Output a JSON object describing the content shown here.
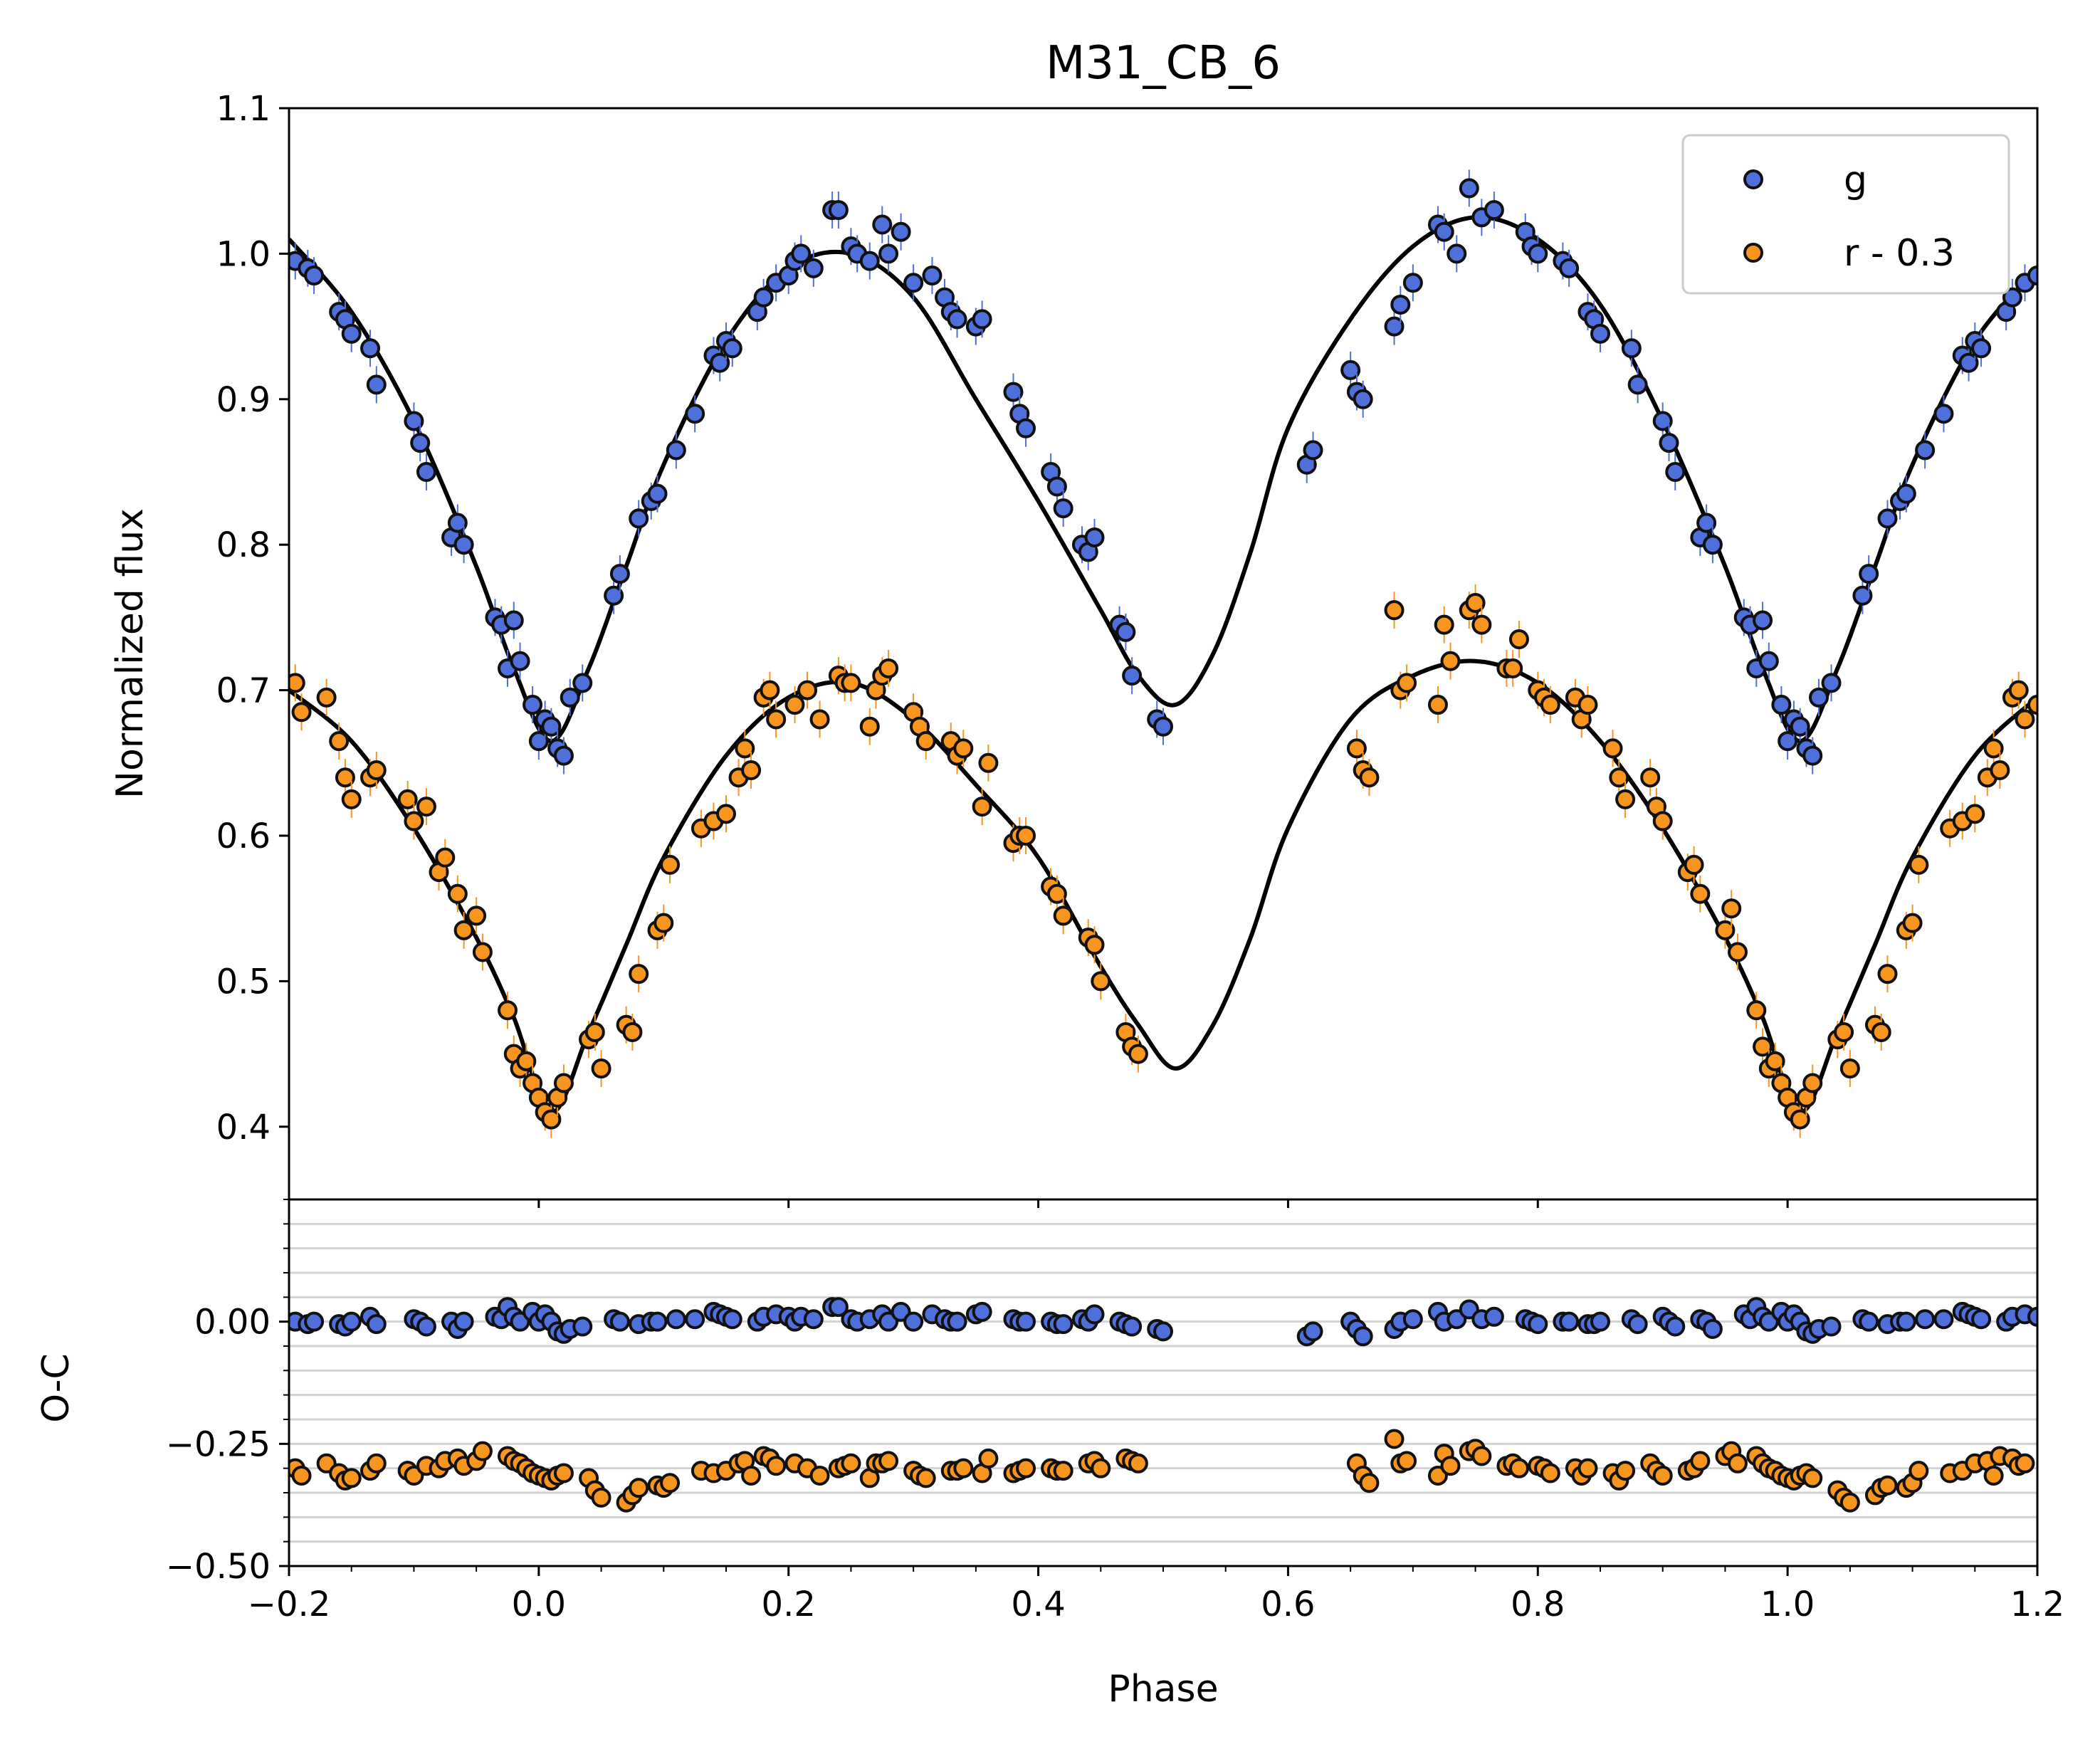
{
  "chart_data": [
    {
      "type": "scatter",
      "panel": "light-curve",
      "title": "M31_CB_6",
      "xlabel": "",
      "ylabel": "Normalized flux",
      "xlim": [
        -0.2,
        1.2
      ],
      "ylim": [
        0.35,
        1.1
      ],
      "yticks": [
        "0.4",
        "0.5",
        "0.6",
        "0.7",
        "0.8",
        "0.9",
        "1.0",
        "1.1"
      ],
      "grid": false,
      "legend_position": "top-right",
      "series": [
        {
          "name": "g",
          "color": "#4F6FDB",
          "marker": "circle",
          "phase": [
            -0.195,
            -0.185,
            -0.18,
            -0.16,
            -0.155,
            -0.15,
            -0.135,
            -0.13,
            -0.1,
            -0.095,
            -0.09,
            -0.07,
            -0.065,
            -0.06,
            -0.035,
            -0.03,
            -0.025,
            -0.02,
            -0.015,
            -0.005,
            0.0,
            0.005,
            0.01,
            0.015,
            0.02,
            0.025,
            0.035,
            0.06,
            0.065,
            0.08,
            0.09,
            0.095,
            0.11,
            0.125,
            0.14,
            0.145,
            0.15,
            0.155,
            0.175,
            0.18,
            0.19,
            0.2,
            0.205,
            0.21,
            0.22,
            0.235,
            0.24,
            0.25,
            0.255,
            0.265,
            0.275,
            0.28,
            0.29,
            0.3,
            0.315,
            0.325,
            0.33,
            0.335,
            0.35,
            0.355,
            0.38,
            0.385,
            0.39,
            0.41,
            0.415,
            0.42,
            0.435,
            0.44,
            0.445,
            0.465,
            0.47,
            0.475,
            0.495,
            0.5,
            0.615,
            0.62,
            0.65,
            0.655,
            0.66,
            0.685,
            0.69,
            0.7,
            0.72,
            0.725,
            0.735,
            0.745,
            0.755,
            0.765,
            0.79,
            0.795,
            0.8,
            0.82,
            0.825,
            0.84,
            0.845,
            0.85,
            0.875,
            0.88,
            0.9,
            0.905,
            0.91,
            0.93,
            0.935,
            0.94,
            0.965,
            0.97,
            0.975,
            0.98,
            0.985,
            0.995,
            1.0,
            1.005,
            1.01,
            1.015,
            1.02,
            1.025,
            1.035,
            1.06,
            1.065,
            1.08,
            1.09,
            1.095,
            1.11,
            1.125,
            1.14,
            1.145,
            1.15,
            1.155,
            1.175,
            1.18,
            1.19,
            1.2
          ],
          "flux": [
            0.995,
            0.99,
            0.985,
            0.96,
            0.955,
            0.945,
            0.935,
            0.91,
            0.885,
            0.87,
            0.85,
            0.805,
            0.815,
            0.8,
            0.75,
            0.745,
            0.715,
            0.748,
            0.72,
            0.69,
            0.665,
            0.68,
            0.675,
            0.66,
            0.655,
            0.695,
            0.705,
            0.765,
            0.78,
            0.818,
            0.83,
            0.835,
            0.865,
            0.89,
            0.93,
            0.925,
            0.94,
            0.935,
            0.96,
            0.97,
            0.98,
            0.985,
            0.995,
            1.0,
            0.99,
            1.03,
            1.03,
            1.005,
            1.0,
            0.995,
            1.02,
            1.0,
            1.015,
            0.98,
            0.985,
            0.97,
            0.96,
            0.955,
            0.95,
            0.955,
            0.905,
            0.89,
            0.88,
            0.85,
            0.84,
            0.825,
            0.8,
            0.795,
            0.805,
            0.745,
            0.74,
            0.71,
            0.68,
            0.675,
            0.855,
            0.865,
            0.92,
            0.905,
            0.9,
            0.95,
            0.965,
            0.98,
            1.02,
            1.015,
            1.0,
            1.045,
            1.025,
            1.03,
            1.015,
            1.005,
            1.0,
            0.995,
            0.99,
            0.96,
            0.955,
            0.945,
            0.935,
            0.91,
            0.885,
            0.87,
            0.85,
            0.805,
            0.815,
            0.8,
            0.75,
            0.745,
            0.715,
            0.748,
            0.72,
            0.69,
            0.665,
            0.68,
            0.675,
            0.66,
            0.655,
            0.695,
            0.705,
            0.765,
            0.78,
            0.818,
            0.83,
            0.835,
            0.865,
            0.89,
            0.93,
            0.925,
            0.94,
            0.935,
            0.96,
            0.97,
            0.98,
            0.985
          ],
          "oc": [
            0.0,
            -0.005,
            0.0,
            -0.005,
            -0.01,
            0.0,
            0.01,
            -0.005,
            0.005,
            0.0,
            -0.01,
            0.0,
            -0.015,
            0.0,
            0.01,
            0.005,
            0.03,
            0.01,
            0.0,
            0.02,
            0.0,
            0.015,
            0.0,
            -0.02,
            -0.025,
            -0.015,
            -0.01,
            0.005,
            0.0,
            -0.005,
            0.0,
            0.0,
            0.005,
            0.005,
            0.02,
            0.015,
            0.01,
            0.005,
            0.0,
            0.01,
            0.015,
            0.01,
            0.0,
            0.01,
            0.005,
            0.03,
            0.03,
            0.005,
            0.0,
            0.005,
            0.015,
            0.0,
            0.02,
            0.0,
            0.015,
            0.005,
            0.0,
            0.0,
            0.015,
            0.02,
            0.005,
            0.0,
            0.0,
            0.0,
            -0.005,
            -0.005,
            0.005,
            0.0,
            0.015,
            0.0,
            -0.005,
            -0.01,
            -0.015,
            -0.02,
            -0.03,
            -0.02,
            0.0,
            -0.015,
            -0.03,
            -0.015,
            0.0,
            0.005,
            0.02,
            0.0,
            0.005,
            0.025,
            0.005,
            0.01,
            0.005,
            0.0,
            -0.005,
            0.0,
            0.0,
            -0.005,
            -0.005,
            0.0,
            0.005,
            -0.005,
            0.01,
            0.0,
            -0.01,
            0.005,
            0.0,
            -0.015,
            0.015,
            0.005,
            0.03,
            0.01,
            0.0,
            0.02,
            0.0,
            0.015,
            0.0,
            -0.02,
            -0.025,
            -0.015,
            -0.01,
            0.005,
            0.0,
            -0.005,
            0.0,
            0.0,
            0.005,
            0.005,
            0.02,
            0.015,
            0.01,
            0.005,
            0.0,
            0.01,
            0.015,
            0.01
          ]
        },
        {
          "name": "r - 0.3",
          "color": "#F7951E",
          "marker": "circle",
          "phase": [
            -0.195,
            -0.19,
            -0.17,
            -0.16,
            -0.155,
            -0.15,
            -0.135,
            -0.13,
            -0.105,
            -0.1,
            -0.09,
            -0.08,
            -0.075,
            -0.065,
            -0.06,
            -0.05,
            -0.045,
            -0.025,
            -0.02,
            -0.015,
            -0.01,
            -0.005,
            0.0,
            0.005,
            0.01,
            0.015,
            0.02,
            0.04,
            0.045,
            0.05,
            0.07,
            0.075,
            0.08,
            0.095,
            0.1,
            0.105,
            0.13,
            0.14,
            0.15,
            0.16,
            0.165,
            0.17,
            0.18,
            0.185,
            0.19,
            0.205,
            0.215,
            0.225,
            0.24,
            0.245,
            0.25,
            0.265,
            0.27,
            0.275,
            0.28,
            0.3,
            0.305,
            0.31,
            0.33,
            0.335,
            0.34,
            0.355,
            0.36,
            0.38,
            0.385,
            0.39,
            0.41,
            0.415,
            0.42,
            0.44,
            0.445,
            0.45,
            0.47,
            0.475,
            0.48,
            0.655,
            0.66,
            0.665,
            0.685,
            0.69,
            0.695,
            0.72,
            0.725,
            0.73,
            0.745,
            0.75,
            0.755,
            0.775,
            0.78,
            0.785,
            0.8,
            0.805,
            0.81,
            0.83,
            0.835,
            0.84,
            0.86,
            0.865,
            0.87,
            0.89,
            0.895,
            0.9,
            0.92,
            0.925,
            0.93,
            0.95,
            0.955,
            0.96,
            0.975,
            0.98,
            0.985,
            0.99,
            0.995,
            1.0,
            1.005,
            1.01,
            1.015,
            1.02,
            1.04,
            1.045,
            1.05,
            1.07,
            1.075,
            1.08,
            1.095,
            1.1,
            1.105,
            1.13,
            1.14,
            1.15,
            1.16,
            1.165,
            1.17,
            1.18,
            1.185,
            1.19,
            1.2
          ],
          "flux": [
            0.705,
            0.685,
            0.695,
            0.665,
            0.64,
            0.625,
            0.64,
            0.645,
            0.625,
            0.61,
            0.62,
            0.575,
            0.585,
            0.56,
            0.535,
            0.545,
            0.52,
            0.48,
            0.45,
            0.44,
            0.445,
            0.43,
            0.42,
            0.41,
            0.405,
            0.42,
            0.43,
            0.46,
            0.465,
            0.44,
            0.47,
            0.465,
            0.505,
            0.535,
            0.54,
            0.58,
            0.605,
            0.61,
            0.615,
            0.64,
            0.66,
            0.645,
            0.695,
            0.7,
            0.68,
            0.69,
            0.7,
            0.68,
            0.71,
            0.705,
            0.705,
            0.675,
            0.7,
            0.71,
            0.715,
            0.685,
            0.675,
            0.665,
            0.665,
            0.655,
            0.66,
            0.62,
            0.65,
            0.595,
            0.6,
            0.6,
            0.565,
            0.56,
            0.545,
            0.53,
            0.525,
            0.5,
            0.465,
            0.455,
            0.45,
            0.66,
            0.645,
            0.64,
            0.755,
            0.7,
            0.705,
            0.69,
            0.745,
            0.72,
            0.755,
            0.76,
            0.745,
            0.715,
            0.715,
            0.735,
            0.7,
            0.695,
            0.69,
            0.695,
            0.68,
            0.69,
            0.66,
            0.64,
            0.625,
            0.64,
            0.62,
            0.61,
            0.575,
            0.58,
            0.56,
            0.535,
            0.55,
            0.52,
            0.48,
            0.455,
            0.44,
            0.445,
            0.43,
            0.42,
            0.41,
            0.405,
            0.42,
            0.43,
            0.46,
            0.465,
            0.44,
            0.47,
            0.465,
            0.505,
            0.535,
            0.54,
            0.58,
            0.605,
            0.61,
            0.615,
            0.64,
            0.66,
            0.645,
            0.695,
            0.7,
            0.68,
            0.69
          ],
          "oc": [
            -0.3,
            -0.315,
            -0.29,
            -0.31,
            -0.325,
            -0.32,
            -0.305,
            -0.29,
            -0.305,
            -0.315,
            -0.295,
            -0.3,
            -0.285,
            -0.28,
            -0.295,
            -0.285,
            -0.265,
            -0.275,
            -0.285,
            -0.29,
            -0.3,
            -0.31,
            -0.315,
            -0.32,
            -0.325,
            -0.315,
            -0.31,
            -0.32,
            -0.345,
            -0.36,
            -0.37,
            -0.355,
            -0.34,
            -0.335,
            -0.34,
            -0.33,
            -0.305,
            -0.31,
            -0.305,
            -0.29,
            -0.285,
            -0.315,
            -0.275,
            -0.28,
            -0.295,
            -0.29,
            -0.3,
            -0.315,
            -0.3,
            -0.295,
            -0.29,
            -0.32,
            -0.29,
            -0.29,
            -0.285,
            -0.305,
            -0.315,
            -0.32,
            -0.305,
            -0.305,
            -0.3,
            -0.31,
            -0.28,
            -0.31,
            -0.305,
            -0.3,
            -0.3,
            -0.305,
            -0.305,
            -0.29,
            -0.285,
            -0.3,
            -0.28,
            -0.285,
            -0.29,
            -0.29,
            -0.315,
            -0.33,
            -0.24,
            -0.29,
            -0.285,
            -0.315,
            -0.27,
            -0.295,
            -0.265,
            -0.26,
            -0.275,
            -0.295,
            -0.29,
            -0.3,
            -0.295,
            -0.3,
            -0.31,
            -0.3,
            -0.315,
            -0.3,
            -0.31,
            -0.325,
            -0.305,
            -0.29,
            -0.305,
            -0.315,
            -0.305,
            -0.3,
            -0.285,
            -0.275,
            -0.265,
            -0.29,
            -0.275,
            -0.29,
            -0.3,
            -0.305,
            -0.315,
            -0.32,
            -0.325,
            -0.315,
            -0.31,
            -0.32,
            -0.345,
            -0.36,
            -0.37,
            -0.355,
            -0.34,
            -0.335,
            -0.34,
            -0.33,
            -0.305,
            -0.31,
            -0.305,
            -0.29,
            -0.285,
            -0.315,
            -0.275,
            -0.28,
            -0.295,
            -0.29
          ]
        }
      ],
      "models": [
        {
          "name": "g model",
          "color": "#000000",
          "phase": [
            -0.2,
            -0.15,
            -0.1,
            -0.05,
            -0.02,
            0.01,
            0.04,
            0.07,
            0.1,
            0.15,
            0.2,
            0.25,
            0.3,
            0.35,
            0.4,
            0.45,
            0.48,
            0.51,
            0.54,
            0.57,
            0.6,
            0.65,
            0.7,
            0.75,
            0.8,
            0.85,
            0.9,
            0.95,
            0.98,
            1.01,
            1.04,
            1.07,
            1.1,
            1.15,
            1.2
          ],
          "flux": [
            1.01,
            0.96,
            0.885,
            0.785,
            0.715,
            0.665,
            0.715,
            0.785,
            0.855,
            0.94,
            0.99,
            1.0,
            0.97,
            0.9,
            0.83,
            0.755,
            0.71,
            0.69,
            0.725,
            0.795,
            0.88,
            0.955,
            1.005,
            1.025,
            1.01,
            0.965,
            0.885,
            0.785,
            0.715,
            0.665,
            0.715,
            0.785,
            0.855,
            0.94,
            0.99
          ]
        },
        {
          "name": "r model",
          "color": "#000000",
          "phase": [
            -0.2,
            -0.15,
            -0.1,
            -0.05,
            -0.02,
            0.01,
            0.04,
            0.07,
            0.1,
            0.15,
            0.2,
            0.25,
            0.3,
            0.35,
            0.4,
            0.45,
            0.48,
            0.51,
            0.54,
            0.57,
            0.6,
            0.65,
            0.7,
            0.75,
            0.8,
            0.85,
            0.9,
            0.95,
            0.98,
            1.01,
            1.04,
            1.07,
            1.1,
            1.15,
            1.2
          ],
          "flux": [
            0.7,
            0.665,
            0.605,
            0.53,
            0.475,
            0.41,
            0.465,
            0.525,
            0.585,
            0.655,
            0.695,
            0.705,
            0.68,
            0.635,
            0.585,
            0.51,
            0.47,
            0.44,
            0.47,
            0.53,
            0.605,
            0.68,
            0.71,
            0.72,
            0.705,
            0.665,
            0.605,
            0.53,
            0.475,
            0.41,
            0.465,
            0.525,
            0.585,
            0.655,
            0.695
          ]
        }
      ]
    },
    {
      "type": "scatter",
      "panel": "residuals",
      "title": "",
      "xlabel": "Phase",
      "ylabel": "O-C",
      "xlim": [
        -0.2,
        1.2
      ],
      "ylim": [
        -0.5,
        0.25
      ],
      "xticks": [
        "−0.2",
        "0.0",
        "0.2",
        "0.4",
        "0.6",
        "0.8",
        "1.0",
        "1.2"
      ],
      "yticks": [
        "−0.50",
        "−0.25",
        "0.00"
      ],
      "grid": true,
      "series_ref": [
        "g",
        "r - 0.3"
      ]
    }
  ]
}
